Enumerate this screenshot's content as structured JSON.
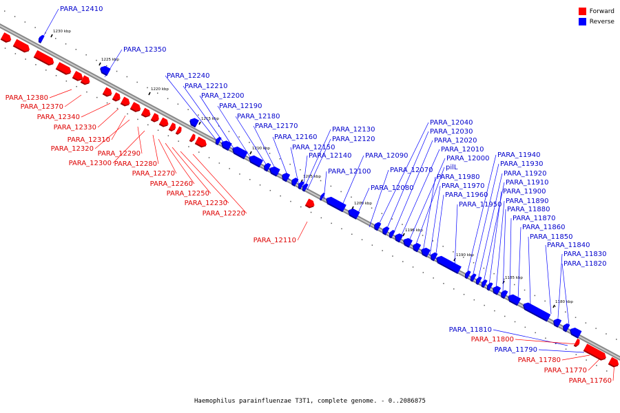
{
  "legend": {
    "forward_label": "Forward",
    "reverse_label": "Reverse",
    "forward_color": "#ff0000",
    "reverse_color": "#0000ff"
  },
  "caption": "Haemophilus parainfluenzae T3T1, complete genome. - 0..2086875",
  "ruler_ticks": [
    "1230 kbp",
    "1225 kbp",
    "1220 kbp",
    "1215 kbp",
    "1210 kbp",
    "1205 kbp",
    "1200 kbp",
    "1195 kbp",
    "1190 kbp",
    "1185 kbp",
    "1180 kbp"
  ],
  "genes": [
    {
      "name": "PARA_12410",
      "strand": "reverse"
    },
    {
      "name": "PARA_12350",
      "strand": "reverse"
    },
    {
      "name": "PARA_12380",
      "strand": "forward"
    },
    {
      "name": "PARA_12370",
      "strand": "forward"
    },
    {
      "name": "PARA_12340",
      "strand": "forward"
    },
    {
      "name": "PARA_12330",
      "strand": "forward"
    },
    {
      "name": "PARA_12310",
      "strand": "forward"
    },
    {
      "name": "PARA_12320",
      "strand": "forward"
    },
    {
      "name": "PARA_12290",
      "strand": "forward"
    },
    {
      "name": "PARA_12300",
      "strand": "forward"
    },
    {
      "name": "PARA_12280",
      "strand": "forward"
    },
    {
      "name": "PARA_12270",
      "strand": "forward"
    },
    {
      "name": "PARA_12260",
      "strand": "forward"
    },
    {
      "name": "PARA_12250",
      "strand": "forward"
    },
    {
      "name": "PARA_12230",
      "strand": "forward"
    },
    {
      "name": "PARA_12220",
      "strand": "forward"
    },
    {
      "name": "PARA_12110",
      "strand": "forward"
    },
    {
      "name": "PARA_12240",
      "strand": "reverse"
    },
    {
      "name": "PARA_12210",
      "strand": "reverse"
    },
    {
      "name": "PARA_12200",
      "strand": "reverse"
    },
    {
      "name": "PARA_12190",
      "strand": "reverse"
    },
    {
      "name": "PARA_12180",
      "strand": "reverse"
    },
    {
      "name": "PARA_12170",
      "strand": "reverse"
    },
    {
      "name": "PARA_12160",
      "strand": "reverse"
    },
    {
      "name": "PARA_12150",
      "strand": "reverse"
    },
    {
      "name": "PARA_12140",
      "strand": "reverse"
    },
    {
      "name": "PARA_12130",
      "strand": "reverse"
    },
    {
      "name": "PARA_12120",
      "strand": "reverse"
    },
    {
      "name": "PARA_12100",
      "strand": "reverse"
    },
    {
      "name": "PARA_12090",
      "strand": "reverse"
    },
    {
      "name": "PARA_12080",
      "strand": "reverse"
    },
    {
      "name": "PARA_12070",
      "strand": "reverse"
    },
    {
      "name": "PARA_12040",
      "strand": "reverse"
    },
    {
      "name": "PARA_12030",
      "strand": "reverse"
    },
    {
      "name": "PARA_12020",
      "strand": "reverse"
    },
    {
      "name": "PARA_12010",
      "strand": "reverse"
    },
    {
      "name": "PARA_12000",
      "strand": "reverse"
    },
    {
      "name": "pilL",
      "strand": "reverse"
    },
    {
      "name": "PARA_11980",
      "strand": "reverse"
    },
    {
      "name": "PARA_11970",
      "strand": "reverse"
    },
    {
      "name": "PARA_11960",
      "strand": "reverse"
    },
    {
      "name": "PARA_11950",
      "strand": "reverse"
    },
    {
      "name": "PARA_11940",
      "strand": "reverse"
    },
    {
      "name": "PARA_11930",
      "strand": "reverse"
    },
    {
      "name": "PARA_11920",
      "strand": "reverse"
    },
    {
      "name": "PARA_11910",
      "strand": "reverse"
    },
    {
      "name": "PARA_11900",
      "strand": "reverse"
    },
    {
      "name": "PARA_11890",
      "strand": "reverse"
    },
    {
      "name": "PARA_11880",
      "strand": "reverse"
    },
    {
      "name": "PARA_11870",
      "strand": "reverse"
    },
    {
      "name": "PARA_11860",
      "strand": "reverse"
    },
    {
      "name": "PARA_11850",
      "strand": "reverse"
    },
    {
      "name": "PARA_11840",
      "strand": "reverse"
    },
    {
      "name": "PARA_11830",
      "strand": "reverse"
    },
    {
      "name": "PARA_11820",
      "strand": "reverse"
    },
    {
      "name": "PARA_11810",
      "strand": "reverse"
    },
    {
      "name": "PARA_11800",
      "strand": "forward"
    },
    {
      "name": "PARA_11790",
      "strand": "reverse"
    },
    {
      "name": "PARA_11780",
      "strand": "forward"
    },
    {
      "name": "PARA_11770",
      "strand": "forward"
    },
    {
      "name": "PARA_11760",
      "strand": "forward"
    }
  ]
}
